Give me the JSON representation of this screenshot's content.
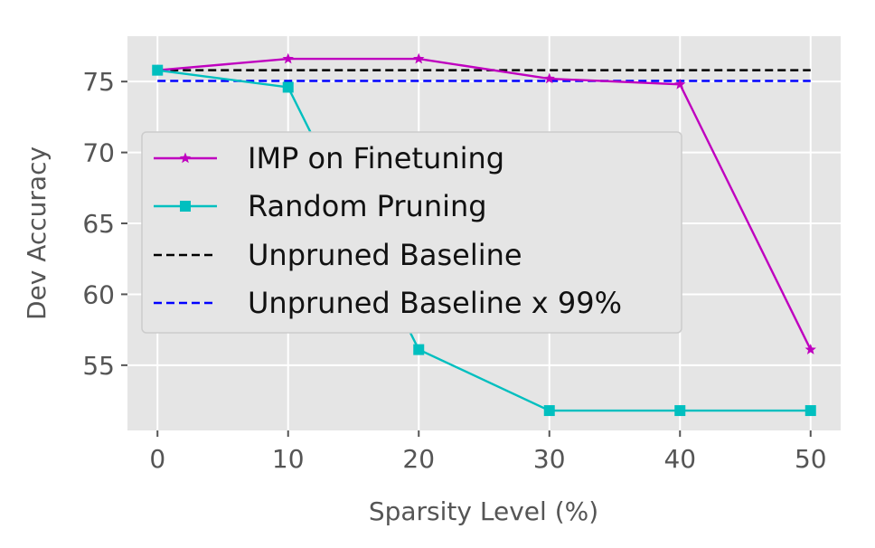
{
  "chart_data": {
    "type": "line",
    "xlabel": "Sparsity Level (%)",
    "ylabel": "Dev Accuracy",
    "x": [
      0,
      10,
      20,
      30,
      40,
      50
    ],
    "xticks": [
      0,
      10,
      20,
      30,
      40,
      50
    ],
    "xlim": [
      -2.3,
      52.3
    ],
    "yticks": [
      55,
      60,
      65,
      70,
      75
    ],
    "ylim": [
      50.4,
      78.2
    ],
    "grid": true,
    "legend_position": "center-left",
    "series": [
      {
        "name": "IMP on Finetuning",
        "values": [
          75.8,
          76.6,
          76.6,
          75.2,
          74.8,
          56.1
        ],
        "color": "#bf00bf",
        "style": "solid",
        "marker": "star"
      },
      {
        "name": "Random Pruning",
        "values": [
          75.8,
          74.6,
          56.1,
          51.8,
          51.8,
          51.8
        ],
        "color": "#00bfbf",
        "style": "solid",
        "marker": "square"
      },
      {
        "name": "Unpruned Baseline",
        "values": [
          75.8,
          75.8,
          75.8,
          75.8,
          75.8,
          75.8
        ],
        "color": "#000000",
        "style": "dashed",
        "marker": "none"
      },
      {
        "name": "Unpruned Baseline x 99%",
        "values": [
          75.04,
          75.04,
          75.04,
          75.04,
          75.04,
          75.04
        ],
        "color": "#0000ff",
        "style": "dashed",
        "marker": "none"
      }
    ]
  }
}
